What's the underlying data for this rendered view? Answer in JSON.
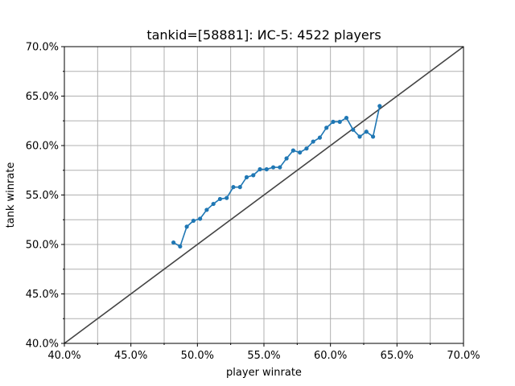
{
  "chart_data": {
    "type": "line",
    "title": "tankid=[58881]: ИС-5: 4522 players",
    "xlabel": "player winrate",
    "ylabel": "tank winrate",
    "xlim": [
      0.4,
      0.7
    ],
    "ylim": [
      0.4,
      0.7
    ],
    "grid": true,
    "x_ticks": [
      0.4,
      0.45,
      0.5,
      0.55,
      0.6,
      0.65,
      0.7
    ],
    "x_tick_labels": [
      "40.0%",
      "45.0%",
      "50.0%",
      "55.0%",
      "60.0%",
      "65.0%",
      "70.0%"
    ],
    "y_ticks": [
      0.4,
      0.45,
      0.5,
      0.55,
      0.6,
      0.65,
      0.7
    ],
    "y_tick_labels": [
      "40.0%",
      "45.0%",
      "50.0%",
      "55.0%",
      "60.0%",
      "65.0%",
      "70.0%"
    ],
    "minor_ticks": [
      0.425,
      0.475,
      0.525,
      0.575,
      0.625,
      0.675
    ],
    "series": [
      {
        "color": "#1f77b4",
        "x": [
          0.482,
          0.487,
          0.492,
          0.497,
          0.502,
          0.507,
          0.512,
          0.517,
          0.522,
          0.527,
          0.532,
          0.537,
          0.542,
          0.547,
          0.552,
          0.557,
          0.562,
          0.567,
          0.572,
          0.577,
          0.582,
          0.587,
          0.592,
          0.597,
          0.602,
          0.607,
          0.612,
          0.617,
          0.622,
          0.627,
          0.632,
          0.637
        ],
        "y": [
          0.502,
          0.498,
          0.518,
          0.524,
          0.526,
          0.535,
          0.541,
          0.546,
          0.547,
          0.558,
          0.558,
          0.568,
          0.57,
          0.576,
          0.576,
          0.578,
          0.578,
          0.587,
          0.595,
          0.593,
          0.597,
          0.604,
          0.608,
          0.618,
          0.624,
          0.624,
          0.628,
          0.616,
          0.609,
          0.614,
          0.609,
          0.64
        ]
      },
      {
        "color": "#444444",
        "x": [
          0.4,
          0.7
        ],
        "y": [
          0.4,
          0.7
        ]
      }
    ]
  }
}
